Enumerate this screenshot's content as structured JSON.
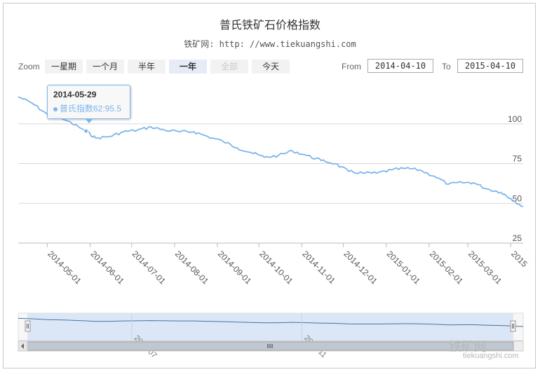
{
  "title": "普氏铁矿石价格指数",
  "subtitle": "铁矿网: http: //www.tiekuangshi.com",
  "range_selector": {
    "zoom_label": "Zoom",
    "buttons": [
      {
        "label": "一星期",
        "state": "normal"
      },
      {
        "label": "一个月",
        "state": "normal"
      },
      {
        "label": "半年",
        "state": "normal"
      },
      {
        "label": "一年",
        "state": "selected"
      },
      {
        "label": "全部",
        "state": "disabled"
      },
      {
        "label": "今天",
        "state": "normal"
      }
    ],
    "from_label": "From",
    "from_value": "2014-04-10",
    "to_label": "To",
    "to_value": "2015-04-10"
  },
  "tooltip": {
    "date": "2014-05-29",
    "series_text": "普氏指数62:95.5"
  },
  "watermark": {
    "text": "铁矿网",
    "sub": "tiekuangshi.com"
  },
  "colors": {
    "line": "#7cb5ec",
    "grid": "#d8d8d8",
    "navigator_fill": "#d7e4f5"
  },
  "chart_data": {
    "type": "line",
    "title": "普氏铁矿石价格指数",
    "ylim": [
      25,
      125
    ],
    "y_ticks": [
      25,
      50,
      75,
      100
    ],
    "grid": true,
    "x_ticks": [
      "2014-05-01",
      "2014-06-01",
      "2014-07-01",
      "2014-08-01",
      "2014-09-01",
      "2014-10-01",
      "2014-11-01",
      "2014-12-01",
      "2015-01-01",
      "2015-02-01",
      "2015-03-01",
      "2015"
    ],
    "series": [
      {
        "x": [
          "2014-04-10",
          "2014-04-20",
          "2014-05-01",
          "2014-05-15",
          "2014-05-29",
          "2014-06-05",
          "2014-06-15",
          "2014-06-25",
          "2014-07-05",
          "2014-07-15",
          "2014-07-25",
          "2014-08-05",
          "2014-08-15",
          "2014-08-25",
          "2014-09-05",
          "2014-09-15",
          "2014-09-25",
          "2014-10-05",
          "2014-10-15",
          "2014-10-25",
          "2014-11-05",
          "2014-11-15",
          "2014-11-25",
          "2014-12-05",
          "2014-12-15",
          "2014-12-25",
          "2015-01-05",
          "2015-01-15",
          "2015-01-25",
          "2015-02-05",
          "2015-02-15",
          "2015-02-25",
          "2015-03-05",
          "2015-03-15",
          "2015-03-25",
          "2015-04-01",
          "2015-04-10"
        ],
        "values": [
          117,
          113,
          106,
          102,
          95.5,
          91,
          92,
          95,
          96,
          98,
          96,
          95,
          95,
          92,
          89,
          85,
          82,
          79,
          80,
          83,
          80,
          77,
          75,
          70,
          69,
          69,
          71,
          72,
          71,
          67,
          62,
          63,
          63,
          59,
          57,
          53,
          48
        ]
      }
    ],
    "navigator": {
      "x_ticks": [
        "2014-07",
        "2014-11"
      ]
    }
  }
}
